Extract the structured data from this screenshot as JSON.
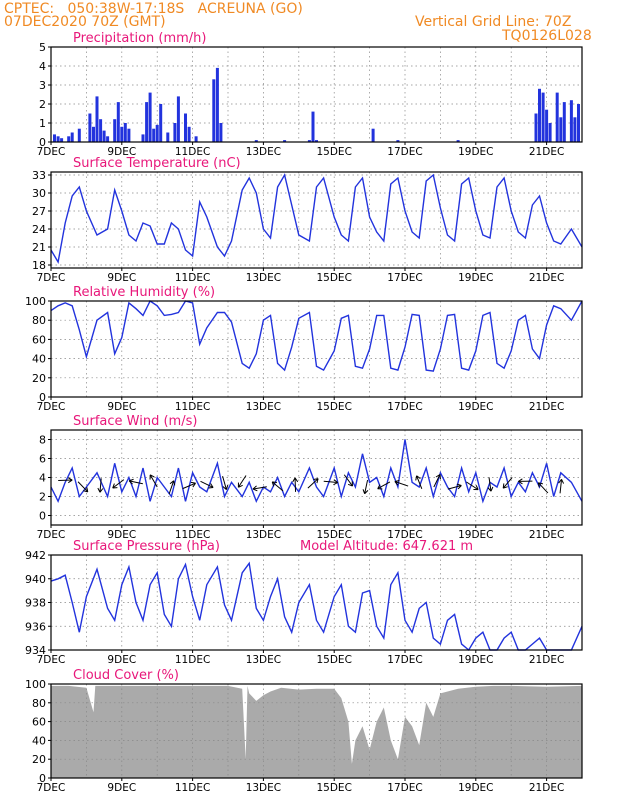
{
  "header": {
    "line1": "CPTEC:   050:38W-17:18S   ACREUNA (GO)",
    "line2": "07DEC2020 70Z (GMT)",
    "grid_note": "Vertical Grid Line: 70Z",
    "code": "TQ0126L028"
  },
  "model_altitude": "Model Altitude: 647.621 m",
  "colors": {
    "header": "#f08a24",
    "title": "#e8177a",
    "series": "#2233dd",
    "cloud": "#aaaaaa",
    "grid": "#888888"
  },
  "x_axis": {
    "start_day": 7,
    "end_day": 22,
    "tick_labels": [
      "7DEC",
      "9DEC",
      "11DEC",
      "13DEC",
      "15DEC",
      "17DEC",
      "19DEC",
      "21DEC"
    ],
    "tick_days": [
      7,
      9,
      11,
      13,
      15,
      17,
      19,
      21
    ]
  },
  "chart_data": [
    {
      "id": "precip",
      "type": "bar",
      "title": "Precipitation (mm/h)",
      "ylim": [
        0,
        5
      ],
      "yticks": [
        0,
        1,
        2,
        3,
        4,
        5
      ],
      "x": [
        7.1,
        7.2,
        7.3,
        7.5,
        7.6,
        7.8,
        8.1,
        8.2,
        8.3,
        8.4,
        8.5,
        8.6,
        8.8,
        8.9,
        9.0,
        9.1,
        9.2,
        9.6,
        9.7,
        9.8,
        9.9,
        10.0,
        10.1,
        10.3,
        10.5,
        10.6,
        10.8,
        10.9,
        11.1,
        11.6,
        11.7,
        11.8,
        12.8,
        13.6,
        14.3,
        14.4,
        14.5,
        16.1,
        16.8,
        18.5,
        20.7,
        20.8,
        20.9,
        21.0,
        21.1,
        21.3,
        21.4,
        21.5,
        21.7,
        21.8,
        21.9
      ],
      "values": [
        0.4,
        0.3,
        0.2,
        0.3,
        0.5,
        0.7,
        1.5,
        0.8,
        2.4,
        1.2,
        0.6,
        0.3,
        1.2,
        2.1,
        0.8,
        1.0,
        0.7,
        0.4,
        2.1,
        2.6,
        0.7,
        0.9,
        2.0,
        0.5,
        1.0,
        2.4,
        1.5,
        0.8,
        0.3,
        3.3,
        3.9,
        1.0,
        0.1,
        0.1,
        0.1,
        1.6,
        0.1,
        0.7,
        0.1,
        0.1,
        1.5,
        2.8,
        2.6,
        1.7,
        1.0,
        2.6,
        1.3,
        2.1,
        2.2,
        1.3,
        2.0
      ]
    },
    {
      "id": "temp",
      "type": "line",
      "title": "Surface Temperature (nC)",
      "ylim": [
        17.5,
        33.5
      ],
      "yticks": [
        18,
        21,
        24,
        27,
        30,
        33
      ],
      "x": [
        7.0,
        7.2,
        7.4,
        7.6,
        7.8,
        8.0,
        8.3,
        8.6,
        8.8,
        9.0,
        9.2,
        9.4,
        9.6,
        9.8,
        10.0,
        10.2,
        10.4,
        10.6,
        10.8,
        11.0,
        11.2,
        11.4,
        11.7,
        11.9,
        12.1,
        12.4,
        12.6,
        12.8,
        13.0,
        13.2,
        13.4,
        13.6,
        13.8,
        14.0,
        14.3,
        14.5,
        14.7,
        15.0,
        15.2,
        15.4,
        15.6,
        15.8,
        16.0,
        16.2,
        16.4,
        16.6,
        16.8,
        17.0,
        17.2,
        17.4,
        17.6,
        17.8,
        18.0,
        18.2,
        18.4,
        18.6,
        18.8,
        19.0,
        19.2,
        19.4,
        19.6,
        19.8,
        20.0,
        20.2,
        20.4,
        20.6,
        20.8,
        21.0,
        21.2,
        21.4,
        21.7,
        22.0
      ],
      "values": [
        20.5,
        18.5,
        25.0,
        29.5,
        31.0,
        27.0,
        23.0,
        24.0,
        30.5,
        27.0,
        23.0,
        22.0,
        25.0,
        24.5,
        21.5,
        21.5,
        25.0,
        24.0,
        20.5,
        19.5,
        28.5,
        26.0,
        21.0,
        19.5,
        22.0,
        30.5,
        32.5,
        30.0,
        24.0,
        22.5,
        31.0,
        33.0,
        28.0,
        23.0,
        22.0,
        31.0,
        32.5,
        26.0,
        23.0,
        22.0,
        31.0,
        32.5,
        26.0,
        23.5,
        22.0,
        31.5,
        32.5,
        27.0,
        23.5,
        22.5,
        32.0,
        33.0,
        27.5,
        23.0,
        22.0,
        31.5,
        32.5,
        27.0,
        23.0,
        22.5,
        31.0,
        32.5,
        27.0,
        23.5,
        22.5,
        28.0,
        29.5,
        25.0,
        22.0,
        21.5,
        24.0,
        21.0
      ]
    },
    {
      "id": "rh",
      "type": "line",
      "title": "Relative Humidity (%)",
      "ylim": [
        0,
        100
      ],
      "yticks": [
        0,
        20,
        40,
        60,
        80,
        100
      ],
      "x": [
        7.0,
        7.2,
        7.4,
        7.6,
        7.8,
        8.0,
        8.3,
        8.6,
        8.8,
        9.0,
        9.2,
        9.4,
        9.6,
        9.8,
        10.0,
        10.2,
        10.4,
        10.6,
        10.8,
        11.0,
        11.2,
        11.4,
        11.7,
        11.9,
        12.1,
        12.4,
        12.6,
        12.8,
        13.0,
        13.2,
        13.4,
        13.6,
        13.8,
        14.0,
        14.3,
        14.5,
        14.7,
        15.0,
        15.2,
        15.4,
        15.6,
        15.8,
        16.0,
        16.2,
        16.4,
        16.6,
        16.8,
        17.0,
        17.2,
        17.4,
        17.6,
        17.8,
        18.0,
        18.2,
        18.4,
        18.6,
        18.8,
        19.0,
        19.2,
        19.4,
        19.6,
        19.8,
        20.0,
        20.2,
        20.4,
        20.6,
        20.8,
        21.0,
        21.2,
        21.4,
        21.7,
        22.0
      ],
      "values": [
        90,
        95,
        98,
        95,
        70,
        42,
        80,
        88,
        45,
        62,
        98,
        92,
        85,
        100,
        95,
        85,
        86,
        88,
        100,
        98,
        55,
        72,
        88,
        88,
        78,
        35,
        30,
        45,
        80,
        85,
        35,
        28,
        52,
        82,
        88,
        32,
        28,
        48,
        82,
        85,
        32,
        30,
        50,
        85,
        85,
        30,
        28,
        52,
        86,
        85,
        28,
        27,
        50,
        85,
        86,
        30,
        28,
        48,
        85,
        88,
        35,
        30,
        48,
        80,
        85,
        50,
        40,
        75,
        95,
        92,
        80,
        100
      ]
    },
    {
      "id": "wind",
      "type": "line",
      "title": "Surface Wind (m/s)",
      "ylim": [
        -1,
        9
      ],
      "yticks": [
        0,
        2,
        4,
        6,
        8
      ],
      "x": [
        7.0,
        7.2,
        7.4,
        7.6,
        7.8,
        8.0,
        8.3,
        8.6,
        8.8,
        9.0,
        9.2,
        9.4,
        9.6,
        9.8,
        10.0,
        10.2,
        10.4,
        10.6,
        10.8,
        11.0,
        11.2,
        11.4,
        11.7,
        11.9,
        12.1,
        12.4,
        12.6,
        12.8,
        13.0,
        13.2,
        13.4,
        13.6,
        13.8,
        14.0,
        14.3,
        14.5,
        14.7,
        15.0,
        15.2,
        15.4,
        15.6,
        15.8,
        16.0,
        16.2,
        16.4,
        16.6,
        16.8,
        17.0,
        17.2,
        17.4,
        17.6,
        17.8,
        18.0,
        18.2,
        18.4,
        18.6,
        18.8,
        19.0,
        19.2,
        19.4,
        19.6,
        19.8,
        20.0,
        20.2,
        20.4,
        20.6,
        20.8,
        21.0,
        21.2,
        21.4,
        21.7,
        22.0
      ],
      "values": [
        3.0,
        1.5,
        3.5,
        5.0,
        2.0,
        3.0,
        4.5,
        2.0,
        5.5,
        2.5,
        4.0,
        2.0,
        5.0,
        1.5,
        4.0,
        3.0,
        2.0,
        5.0,
        1.5,
        4.5,
        3.0,
        2.5,
        5.5,
        2.0,
        3.5,
        2.0,
        3.5,
        1.5,
        3.0,
        2.5,
        4.0,
        2.0,
        3.5,
        2.5,
        5.0,
        3.0,
        2.0,
        5.0,
        2.0,
        4.5,
        3.0,
        6.5,
        3.5,
        4.0,
        2.0,
        5.0,
        3.0,
        8.0,
        3.5,
        3.0,
        5.0,
        2.0,
        4.5,
        3.0,
        2.0,
        5.0,
        2.5,
        4.5,
        1.5,
        3.5,
        3.0,
        5.0,
        2.0,
        3.5,
        2.5,
        4.5,
        3.0,
        5.5,
        2.0,
        4.5,
        3.5,
        1.5
      ]
    },
    {
      "id": "pressure",
      "type": "line",
      "title": "Surface Pressure (hPa)",
      "ylim": [
        934,
        942
      ],
      "yticks": [
        934,
        936,
        938,
        940,
        942
      ],
      "x": [
        7.0,
        7.2,
        7.4,
        7.6,
        7.8,
        8.0,
        8.3,
        8.6,
        8.8,
        9.0,
        9.2,
        9.4,
        9.6,
        9.8,
        10.0,
        10.2,
        10.4,
        10.6,
        10.8,
        11.0,
        11.2,
        11.4,
        11.7,
        11.9,
        12.1,
        12.4,
        12.6,
        12.8,
        13.0,
        13.2,
        13.4,
        13.6,
        13.8,
        14.0,
        14.3,
        14.5,
        14.7,
        15.0,
        15.2,
        15.4,
        15.6,
        15.8,
        16.0,
        16.2,
        16.4,
        16.6,
        16.8,
        17.0,
        17.2,
        17.4,
        17.6,
        17.8,
        18.0,
        18.2,
        18.4,
        18.6,
        18.8,
        19.0,
        19.2,
        19.4,
        19.6,
        19.8,
        20.0,
        20.2,
        20.4,
        20.6,
        20.8,
        21.0,
        21.2,
        21.4,
        21.7,
        22.0
      ],
      "values": [
        939.8,
        940.0,
        940.3,
        938.0,
        935.5,
        938.5,
        940.8,
        937.5,
        936.5,
        939.5,
        941.0,
        938.0,
        936.5,
        939.5,
        940.5,
        937.0,
        936.0,
        940.0,
        941.2,
        938.5,
        936.5,
        939.5,
        941.0,
        937.8,
        936.5,
        940.5,
        941.3,
        937.5,
        936.5,
        938.5,
        940.0,
        936.8,
        935.5,
        938.0,
        939.5,
        936.5,
        935.5,
        938.5,
        939.5,
        936.0,
        935.5,
        938.8,
        939.0,
        936.0,
        935.0,
        939.5,
        940.5,
        936.5,
        935.5,
        937.5,
        938.0,
        935.0,
        934.5,
        936.5,
        937.0,
        934.5,
        934.0,
        935.0,
        935.5,
        933.5,
        933.0,
        935.0,
        935.5,
        934.0,
        933.5,
        934.5,
        935.0,
        933.8,
        933.0,
        934.0,
        933.5,
        936.0
      ]
    },
    {
      "id": "cloud",
      "type": "area",
      "title": "Cloud Cover (%)",
      "ylim": [
        0,
        100
      ],
      "yticks": [
        0,
        20,
        40,
        60,
        80,
        100
      ],
      "x": [
        7.0,
        7.5,
        8.0,
        8.2,
        8.25,
        8.35,
        8.5,
        9.0,
        9.5,
        10.0,
        10.5,
        11.0,
        11.5,
        12.0,
        12.4,
        12.5,
        12.55,
        12.6,
        12.8,
        13.0,
        13.2,
        13.5,
        14.0,
        14.5,
        15.0,
        15.2,
        15.4,
        15.5,
        15.6,
        15.8,
        16.0,
        16.2,
        16.4,
        16.6,
        16.8,
        17.0,
        17.2,
        17.4,
        17.6,
        17.8,
        18.0,
        18.5,
        19.0,
        19.5,
        20.0,
        21.0,
        22.0
      ],
      "values": [
        98,
        98,
        96,
        70,
        98,
        98,
        98,
        98,
        98,
        98,
        98,
        98,
        98,
        98,
        95,
        20,
        98,
        90,
        82,
        88,
        92,
        96,
        94,
        95,
        95,
        85,
        60,
        15,
        40,
        55,
        30,
        60,
        75,
        40,
        20,
        65,
        55,
        35,
        80,
        65,
        90,
        95,
        97,
        98,
        98,
        97,
        98
      ]
    }
  ]
}
